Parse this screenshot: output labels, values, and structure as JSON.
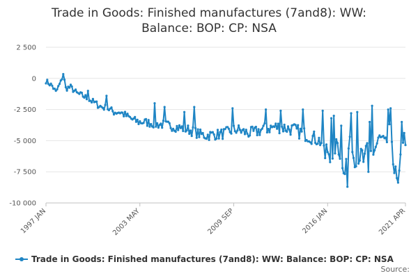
{
  "chart_data": {
    "type": "line",
    "title_line1": "Trade in Goods: Finished manufactures (7and8): WW:",
    "title_line2": "Balance: BOP: CP: NSA",
    "xlabel": "",
    "ylabel": "",
    "ylim": [
      -10000,
      2500
    ],
    "yticks": [
      2500,
      0,
      -2500,
      -5000,
      -7500,
      -10000
    ],
    "ytick_labels": [
      "2 500",
      "0",
      "-2 500",
      "-5 000",
      "-7 500",
      "-10 000"
    ],
    "xticks": [
      {
        "label": "1997 JAN",
        "index": 0
      },
      {
        "label": "2003 MAY",
        "index": 76
      },
      {
        "label": "2009 SEP",
        "index": 152
      },
      {
        "label": "2016 JAN",
        "index": 228
      },
      {
        "label": "2021 APR",
        "index": 291
      }
    ],
    "grid": true,
    "legend_position": "bottom",
    "series": [
      {
        "name": "Trade in Goods: Finished manufactures (7and8): WW: Balance: BOP: CP: NSA",
        "color": "#1f85c4",
        "anchors": [
          [
            0,
            -200
          ],
          [
            5,
            -600
          ],
          [
            8,
            -1100
          ],
          [
            12,
            -300
          ],
          [
            14,
            400
          ],
          [
            16,
            -800
          ],
          [
            20,
            -700
          ],
          [
            25,
            -1200
          ],
          [
            30,
            -1400
          ],
          [
            35,
            -1700
          ],
          [
            40,
            -2000
          ],
          [
            45,
            -2300
          ],
          [
            50,
            -2400
          ],
          [
            55,
            -2700
          ],
          [
            60,
            -2700
          ],
          [
            65,
            -3000
          ],
          [
            70,
            -3300
          ],
          [
            75,
            -3500
          ],
          [
            80,
            -3500
          ],
          [
            85,
            -3600
          ],
          [
            90,
            -3700
          ],
          [
            95,
            -3700
          ],
          [
            100,
            -3800
          ],
          [
            105,
            -3900
          ],
          [
            110,
            -4000
          ],
          [
            115,
            -4100
          ],
          [
            120,
            -4300
          ],
          [
            125,
            -4500
          ],
          [
            130,
            -4600
          ],
          [
            135,
            -4500
          ],
          [
            140,
            -4500
          ],
          [
            145,
            -4400
          ],
          [
            150,
            -4200
          ],
          [
            155,
            -4100
          ],
          [
            160,
            -4300
          ],
          [
            165,
            -4400
          ],
          [
            170,
            -4300
          ],
          [
            175,
            -4100
          ],
          [
            180,
            -4000
          ],
          [
            185,
            -3900
          ],
          [
            190,
            -3900
          ],
          [
            195,
            -4000
          ],
          [
            200,
            -4100
          ],
          [
            205,
            -4300
          ],
          [
            210,
            -4500
          ],
          [
            215,
            -4700
          ],
          [
            220,
            -4900
          ],
          [
            225,
            -5300
          ],
          [
            228,
            -5800
          ],
          [
            230,
            -6200
          ],
          [
            232,
            -6800
          ],
          [
            234,
            -5600
          ],
          [
            236,
            -5200
          ],
          [
            238,
            -6100
          ],
          [
            240,
            -6800
          ],
          [
            242,
            -7400
          ],
          [
            244,
            -5900
          ],
          [
            246,
            -5300
          ],
          [
            248,
            -5800
          ],
          [
            250,
            -6500
          ],
          [
            255,
            -6200
          ],
          [
            260,
            -5800
          ],
          [
            265,
            -6000
          ],
          [
            268,
            -5300
          ],
          [
            270,
            -4800
          ],
          [
            272,
            -5000
          ],
          [
            275,
            -5400
          ],
          [
            278,
            -4300
          ],
          [
            280,
            -4900
          ],
          [
            283,
            -7600
          ],
          [
            285,
            -8700
          ],
          [
            287,
            -6500
          ],
          [
            289,
            -4800
          ],
          [
            291,
            -4800
          ]
        ],
        "outliers": [
          [
            244,
            -8700
          ],
          [
            247,
            -2800
          ],
          [
            262,
            -3500
          ],
          [
            264,
            -2200
          ],
          [
            277,
            -2500
          ],
          [
            279,
            -2400
          ],
          [
            281,
            -6900
          ],
          [
            282,
            -7600
          ],
          [
            284,
            -8000
          ],
          [
            286,
            -7400
          ],
          [
            288,
            -3500
          ],
          [
            261,
            -7500
          ],
          [
            224,
            -2600
          ],
          [
            231,
            -3200
          ],
          [
            239,
            -3800
          ],
          [
            208,
            -2500
          ],
          [
            190,
            -2600
          ],
          [
            178,
            -2500
          ],
          [
            151,
            -2400
          ],
          [
            120,
            -2300
          ],
          [
            96,
            -2300
          ],
          [
            88,
            -2000
          ],
          [
            49,
            -1400
          ],
          [
            34,
            -1000
          ],
          [
            112,
            -2700
          ],
          [
            226,
            -6400
          ],
          [
            233,
            -3000
          ],
          [
            252,
            -2700
          ],
          [
            257,
            -6700
          ],
          [
            267,
            -5500
          ]
        ]
      }
    ]
  },
  "legend": {
    "label": "Trade in Goods: Finished manufactures (7and8): WW: Balance: BOP: CP: NSA"
  },
  "source_label": "Source:"
}
